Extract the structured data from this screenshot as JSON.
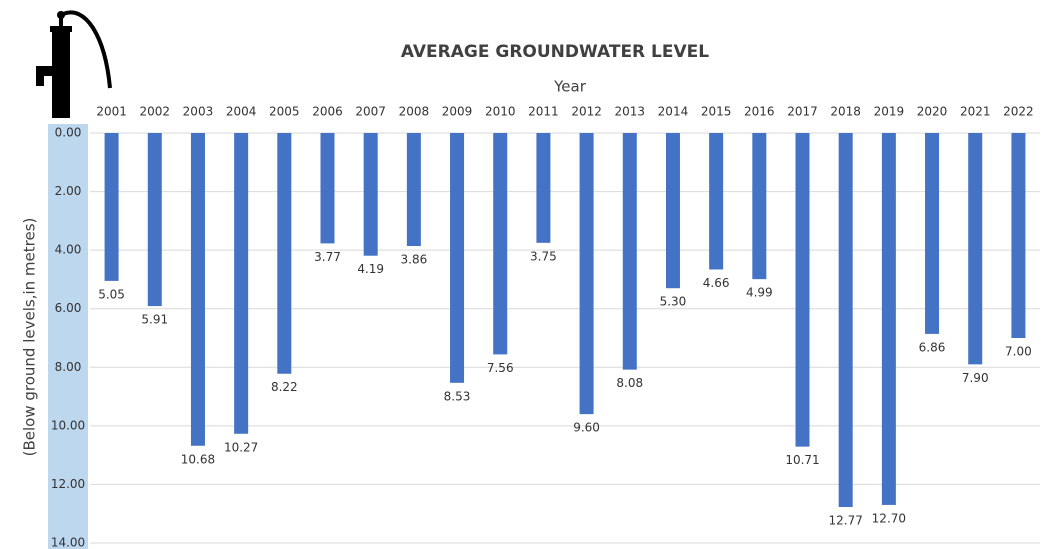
{
  "chart_data": {
    "type": "bar",
    "title": "AVERAGE GROUNDWATER LEVEL",
    "x_label": "Year",
    "y_label": "(Below ground levels,in metres)",
    "categories": [
      "2001",
      "2002",
      "2003",
      "2004",
      "2005",
      "2006",
      "2007",
      "2008",
      "2009",
      "2010",
      "2011",
      "2012",
      "2013",
      "2014",
      "2015",
      "2016",
      "2017",
      "2018",
      "2019",
      "2020",
      "2021",
      "2022"
    ],
    "values": [
      5.05,
      5.91,
      10.68,
      10.27,
      8.22,
      3.77,
      4.19,
      3.86,
      8.53,
      7.56,
      3.75,
      9.6,
      8.08,
      5.3,
      4.66,
      4.99,
      10.71,
      12.77,
      12.7,
      6.86,
      7.9,
      7.0
    ],
    "value_labels": [
      "5.05",
      "5.91",
      "10.68",
      "10.27",
      "8.22",
      "3.77",
      "4.19",
      "3.86",
      "8.53",
      "7.56",
      "3.75",
      "9.60",
      "8.08",
      "5.30",
      "4.66",
      "4.99",
      "10.71",
      "12.77",
      "12.70",
      "6.86",
      "7.90",
      "7.00"
    ],
    "color": "#4472c4",
    "ylim": [
      0,
      14
    ],
    "y_reversed": true,
    "yticks": [
      {
        "value": 0,
        "label": "0.00"
      },
      {
        "value": 2,
        "label": "2.00"
      },
      {
        "value": 4,
        "label": "4.00"
      },
      {
        "value": 6,
        "label": "6.00"
      },
      {
        "value": 8,
        "label": "8.00"
      },
      {
        "value": 10,
        "label": "10.00"
      },
      {
        "value": 12,
        "label": "12.00"
      },
      {
        "value": 14,
        "label": "14.00"
      }
    ],
    "grid": true
  }
}
